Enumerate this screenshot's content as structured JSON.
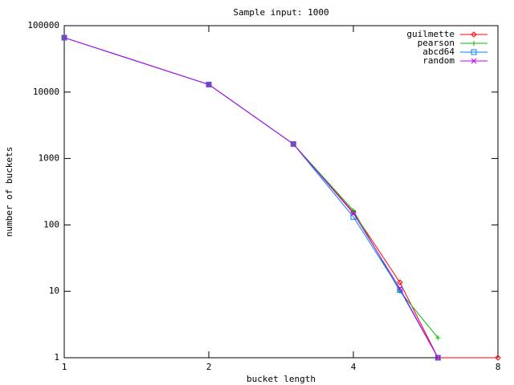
{
  "chart_data": {
    "type": "line",
    "title": "Sample input: 1000",
    "x_label": "bucket length",
    "y_label": "number of buckets",
    "xlim": [
      1,
      8
    ],
    "ylim": [
      1,
      100000
    ],
    "xlog": 2,
    "ylog": 10,
    "xticks": [
      1,
      2,
      4,
      8
    ],
    "yticks": [
      1,
      10,
      100,
      1000,
      10000,
      100000
    ],
    "legend": "top-right",
    "series": [
      {
        "name": "guilmette",
        "color": "#ff0000",
        "marker": "diamond",
        "x": [
          1,
          2,
          3,
          4,
          5,
          6,
          8
        ],
        "values": [
          66000,
          13000,
          1650,
          155,
          13.6,
          1,
          1
        ]
      },
      {
        "name": "pearson",
        "color": "#00c000",
        "marker": "plus",
        "x": [
          1,
          2,
          3,
          4,
          5,
          6
        ],
        "values": [
          66000,
          13000,
          1650,
          165,
          10,
          2
        ]
      },
      {
        "name": "abcd64",
        "color": "#0080ff",
        "marker": "square",
        "x": [
          1,
          2,
          3,
          4,
          5,
          6
        ],
        "values": [
          66000,
          13000,
          1650,
          132,
          10.5,
          1
        ]
      },
      {
        "name": "random",
        "color": "#c000ff",
        "marker": "cross",
        "x": [
          1,
          2,
          3,
          4,
          5,
          6
        ],
        "values": [
          66000,
          13000,
          1650,
          150,
          11,
          1
        ]
      }
    ]
  }
}
